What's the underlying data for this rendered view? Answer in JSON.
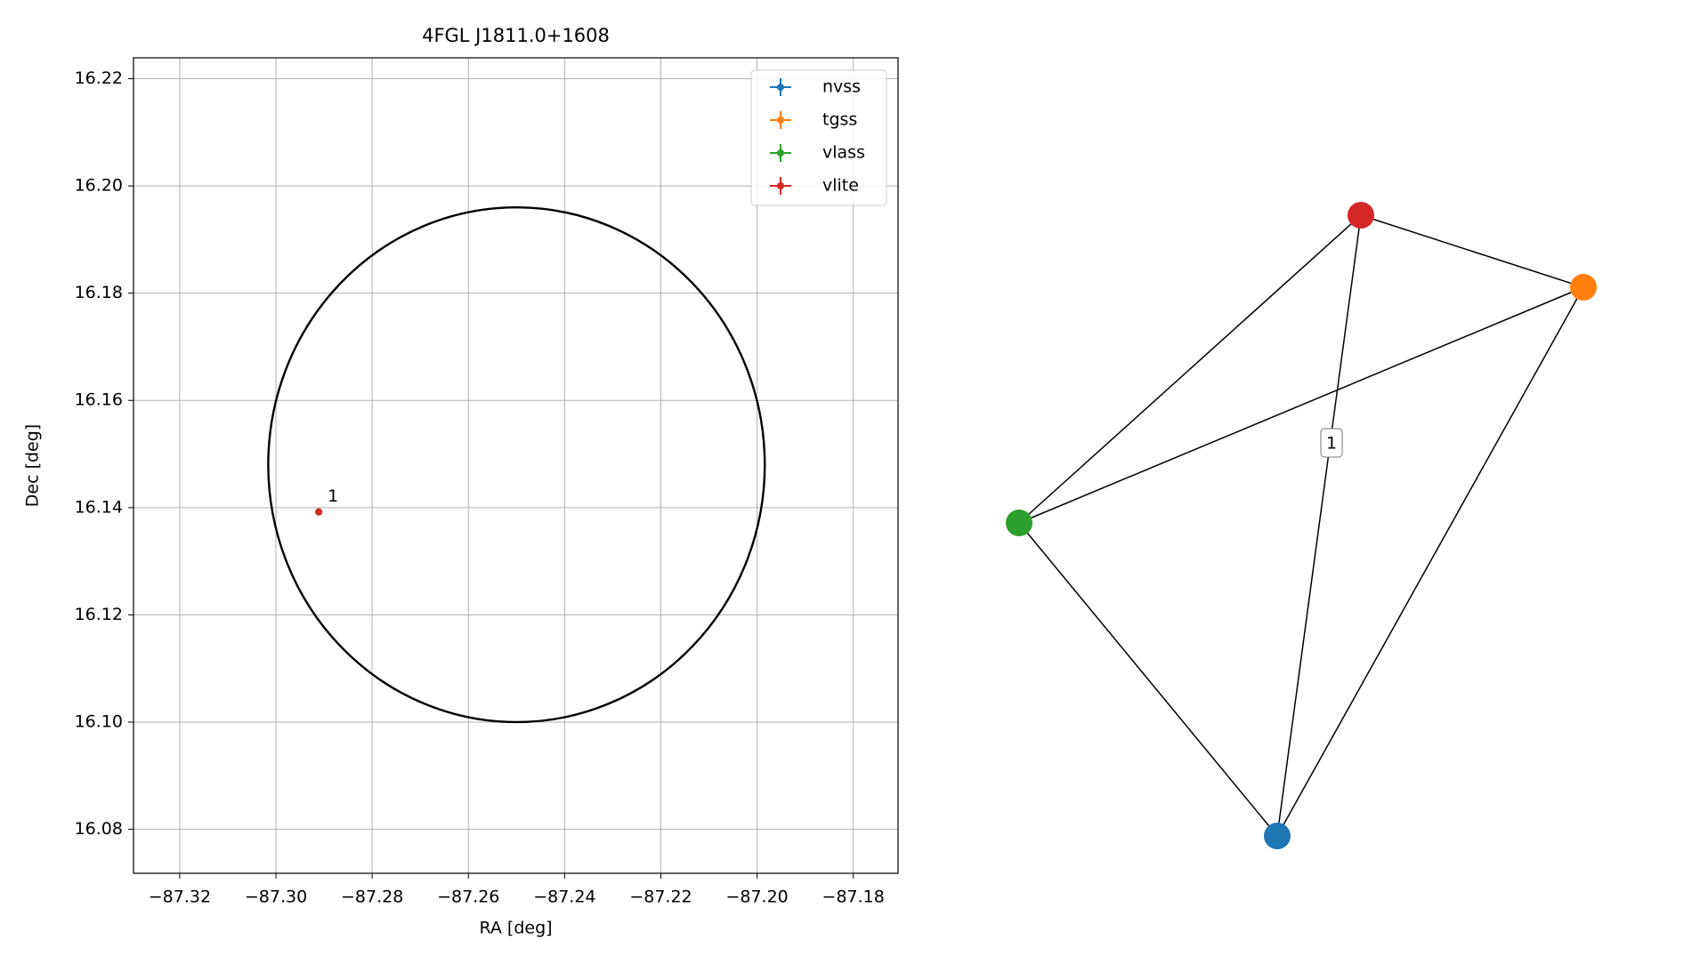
{
  "chart_data": [
    {
      "type": "scatter",
      "title": "4FGL J1811.0+1608",
      "x_label": "RA [deg]",
      "y_label": "Dec [deg]",
      "xlim": [
        -87.3296,
        -87.1707
      ],
      "ylim": [
        16.0718,
        16.2239
      ],
      "xticks": [
        {
          "value": -87.32,
          "label": "−87.32"
        },
        {
          "value": -87.3,
          "label": "−87.30"
        },
        {
          "value": -87.28,
          "label": "−87.28"
        },
        {
          "value": -87.26,
          "label": "−87.26"
        },
        {
          "value": -87.24,
          "label": "−87.24"
        },
        {
          "value": -87.22,
          "label": "−87.22"
        },
        {
          "value": -87.2,
          "label": "−87.20"
        },
        {
          "value": -87.18,
          "label": "−87.18"
        }
      ],
      "yticks": [
        16.08,
        {
          "value": 16.1,
          "label": "16.10"
        },
        16.12,
        16.14,
        16.16,
        16.18,
        {
          "value": 16.2,
          "label": "16.20"
        },
        16.22
      ],
      "grid": true,
      "legend": "upper right",
      "series": [
        {
          "name": "nvss",
          "color": "#1f77b4",
          "x": [
            -87.2911
          ],
          "values": [
            16.1392
          ]
        },
        {
          "name": "tgss",
          "color": "#ff7f0e",
          "x": [
            -87.2911
          ],
          "values": [
            16.1392
          ]
        },
        {
          "name": "vlass",
          "color": "#2ca02c",
          "x": [
            -87.2911
          ],
          "values": [
            16.1392
          ]
        },
        {
          "name": "vlite",
          "color": "#d62728",
          "x": [
            -87.2911
          ],
          "values": [
            16.1392
          ]
        }
      ],
      "region": {
        "center_x": -87.25,
        "center_y": 16.148,
        "radius_x": 0.0516,
        "radius_y": 0.048,
        "color": "#000000"
      },
      "annotations": [
        {
          "text": "1",
          "x": -87.2911,
          "y": 16.1392
        }
      ]
    },
    {
      "type": "graph",
      "node_colors": [
        "#1f77b4",
        "#ff7f0e",
        "#2ca02c",
        "#d62728"
      ],
      "edge_label": "1"
    }
  ]
}
